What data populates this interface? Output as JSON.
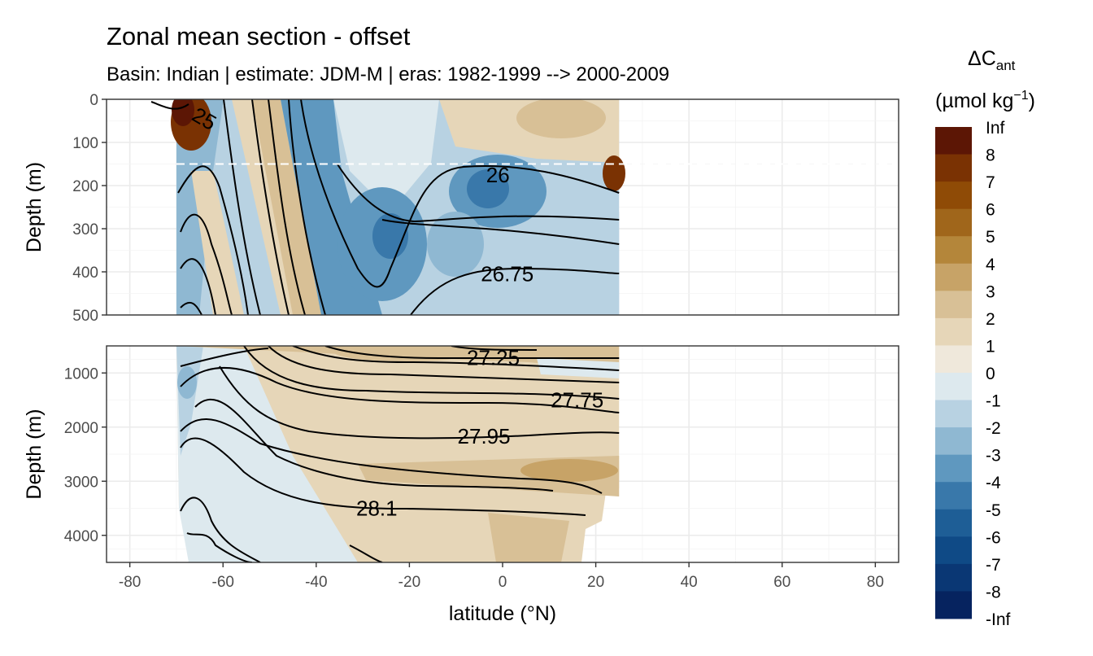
{
  "chart_data": {
    "type": "heatmap",
    "title": "Zonal mean section - offset",
    "subtitle": "Basin: Indian | estimate: JDM-M | eras: 1982-1999 --> 2000-2009",
    "xlabel": "latitude (°N)",
    "xlim": [
      -85,
      85
    ],
    "x_ticks": [
      -80,
      -60,
      -40,
      -20,
      0,
      20,
      40,
      60,
      80
    ],
    "x_tick_labels": [
      "-80",
      "-60",
      "-40",
      "-20",
      "0",
      "20",
      "40",
      "60",
      "80"
    ],
    "data_lat_range": [
      -70,
      25
    ],
    "reference_depth_line": 150,
    "panels": [
      {
        "name": "upper",
        "ylabel": "Depth (m)",
        "ylim": [
          0,
          500
        ],
        "y_ticks": [
          0,
          100,
          200,
          300,
          400,
          500
        ],
        "y_tick_labels": [
          "0",
          "100",
          "200",
          "300",
          "400",
          "500"
        ],
        "contour_labels": [
          {
            "text": "25",
            "lat": -64,
            "depth": 45,
            "rot": 30
          },
          {
            "text": "26",
            "lat": -1,
            "depth": 175,
            "rot": 0
          },
          {
            "text": "26.75",
            "lat": 1,
            "depth": 405,
            "rot": 0
          }
        ]
      },
      {
        "name": "lower",
        "ylabel": "Depth (m)",
        "ylim": [
          500,
          4500
        ],
        "y_ticks": [
          1000,
          2000,
          3000,
          4000
        ],
        "y_tick_labels": [
          "1000",
          "2000",
          "3000",
          "4000"
        ],
        "contour_labels": [
          {
            "text": "27.25",
            "lat": -2,
            "depth": 720
          },
          {
            "text": "27.75",
            "lat": 16,
            "depth": 1500
          },
          {
            "text": "27.95",
            "lat": -4,
            "depth": 2170
          },
          {
            "text": "28.1",
            "lat": -27,
            "depth": 3500
          }
        ]
      }
    ],
    "legend": {
      "title_main": "ΔC",
      "title_sub": "ant",
      "unit_prefix": "(µmol kg",
      "unit_sup": "−1",
      "unit_suffix": ")",
      "placement": "right",
      "labels": [
        "Inf",
        "8",
        "7",
        "6",
        "5",
        "4",
        "3",
        "2",
        "1",
        "0",
        "-1",
        "-2",
        "-3",
        "-4",
        "-5",
        "-6",
        "-7",
        "-8",
        "-Inf"
      ],
      "colors": [
        "#5c1605",
        "#7a3203",
        "#8f4b06",
        "#a0661b",
        "#b4863a",
        "#c7a367",
        "#d8c096",
        "#e6d6b8",
        "#efe8db",
        "#dde9ee",
        "#b8d2e2",
        "#8fb8d2",
        "#5f98bf",
        "#3978aa",
        "#1e5e96",
        "#0f4a86",
        "#0a3774",
        "#06235f"
      ]
    }
  },
  "colors": {
    "pos1": "#e6d6b8",
    "pos2": "#d8c096",
    "pos3": "#c7a367",
    "pos_dark": "#7a3203",
    "zero_band": "#efe8db",
    "neg1": "#dde9ee",
    "neg2": "#b8d2e2",
    "neg3": "#8fb8d2",
    "neg4": "#5f98bf",
    "neg5": "#3978aa",
    "grid": "#ebebeb",
    "axis_text": "#4d4d4d"
  }
}
